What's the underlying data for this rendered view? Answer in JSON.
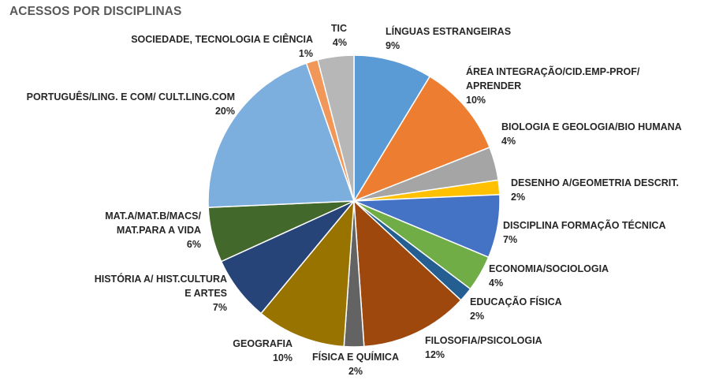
{
  "chart_data": {
    "type": "pie",
    "title": "ACESSOS POR DISCIPLINAS",
    "slices": [
      {
        "label": "LÍNGUAS ESTRANGEIRAS",
        "value": 8.7,
        "value_label": "9%",
        "color": "#5B9BD5"
      },
      {
        "label": "ÁREA INTEGRAÇÃO/CID.EMP-PROF/\nAPRENDER",
        "value": 10.3,
        "value_label": "10%",
        "color": "#ED7D31"
      },
      {
        "label": "BIOLOGIA E GEOLOGIA/BIO HUMANA",
        "value": 3.7,
        "value_label": "4%",
        "color": "#A5A5A5"
      },
      {
        "label": "DESENHO A/GEOMETRIA DESCRIT.",
        "value": 1.6,
        "value_label": "2%",
        "color": "#FFC000"
      },
      {
        "label": "DISCIPLINA FORMAÇÃO TÉCNICA",
        "value": 7.0,
        "value_label": "7%",
        "color": "#4472C4"
      },
      {
        "label": "ECONOMIA/SOCIOLOGIA",
        "value": 4.0,
        "value_label": "4%",
        "color": "#70AD47"
      },
      {
        "label": "EDUCAÇÃO FÍSICA",
        "value": 1.6,
        "value_label": "2%",
        "color": "#255E91"
      },
      {
        "label": "FILOSOFIA/PSICOLOGIA",
        "value": 12.0,
        "value_label": "12%",
        "color": "#9E480E"
      },
      {
        "label": "FÍSICA E QUÍMICA",
        "value": 2.2,
        "value_label": "2%",
        "color": "#636363"
      },
      {
        "label": "GEOGRAFIA",
        "value": 9.9,
        "value_label": "10%",
        "color": "#997300"
      },
      {
        "label": "HISTÓRIA A/ HIST.CULTURA\nE ARTES",
        "value": 7.2,
        "value_label": "7%",
        "color": "#264478"
      },
      {
        "label": "MAT.A/MAT.B/MACS/\nMAT.PARA A VIDA",
        "value": 6.1,
        "value_label": "6%",
        "color": "#43682B"
      },
      {
        "label": "PORTUGUÊS/LING. E COM/ CULT.LING.COM",
        "value": 20.4,
        "value_label": "20%",
        "color": "#7CAFDD"
      },
      {
        "label": "SOCIEDADE, TECNOLOGIA E CIÊNCIA",
        "value": 1.3,
        "value_label": "1%",
        "color": "#F1975A"
      },
      {
        "label": "TIC",
        "value": 4.0,
        "value_label": "4%",
        "color": "#B7B7B7"
      }
    ]
  }
}
